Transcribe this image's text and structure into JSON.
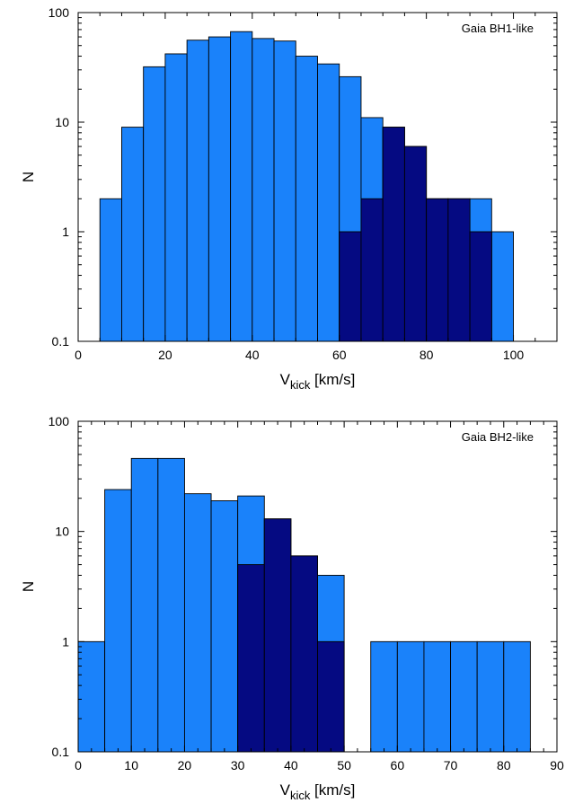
{
  "chart_data": [
    {
      "type": "bar",
      "label": "Gaia BH1-like",
      "xlabel_main": "V",
      "xlabel_sub": "kick",
      "xlabel_unit": "[km/s]",
      "ylabel": "N",
      "log_y": true,
      "xlim": [
        0,
        110
      ],
      "ylim": [
        0.1,
        100
      ],
      "xticks": [
        0,
        20,
        40,
        60,
        80,
        100
      ],
      "yticks": [
        0.1,
        1,
        10,
        100
      ],
      "ytick_labels": [
        "0.1",
        "1",
        "10",
        "100"
      ],
      "bin_width": 5,
      "colors": {
        "all": "#1a82fa",
        "subset": "#050a82"
      },
      "series": [
        {
          "role": "all",
          "bins": [
            {
              "x0": 5,
              "count": 2
            },
            {
              "x0": 10,
              "count": 9
            },
            {
              "x0": 15,
              "count": 32
            },
            {
              "x0": 20,
              "count": 42
            },
            {
              "x0": 25,
              "count": 56
            },
            {
              "x0": 30,
              "count": 60
            },
            {
              "x0": 35,
              "count": 67
            },
            {
              "x0": 40,
              "count": 58
            },
            {
              "x0": 45,
              "count": 55
            },
            {
              "x0": 50,
              "count": 40
            },
            {
              "x0": 55,
              "count": 34
            },
            {
              "x0": 60,
              "count": 26
            },
            {
              "x0": 65,
              "count": 11
            },
            {
              "x0": 70,
              "count": 9
            },
            {
              "x0": 75,
              "count": 6
            },
            {
              "x0": 80,
              "count": 2
            },
            {
              "x0": 85,
              "count": 2
            },
            {
              "x0": 90,
              "count": 2
            },
            {
              "x0": 95,
              "count": 1
            }
          ]
        },
        {
          "role": "subset",
          "bins": [
            {
              "x0": 60,
              "count": 1
            },
            {
              "x0": 65,
              "count": 2
            },
            {
              "x0": 70,
              "count": 9
            },
            {
              "x0": 75,
              "count": 6
            },
            {
              "x0": 80,
              "count": 2
            },
            {
              "x0": 85,
              "count": 2
            },
            {
              "x0": 90,
              "count": 1
            }
          ]
        }
      ]
    },
    {
      "type": "bar",
      "label": "Gaia BH2-like",
      "xlabel_main": "V",
      "xlabel_sub": "kick",
      "xlabel_unit": "[km/s]",
      "ylabel": "N",
      "log_y": true,
      "xlim": [
        0,
        90
      ],
      "ylim": [
        0.1,
        100
      ],
      "xticks": [
        0,
        10,
        20,
        30,
        40,
        50,
        60,
        70,
        80,
        90
      ],
      "yticks": [
        0.1,
        1,
        10,
        100
      ],
      "ytick_labels": [
        "0.1",
        "1",
        "10",
        "100"
      ],
      "bin_width": 5,
      "colors": {
        "all": "#1a82fa",
        "subset": "#050a82"
      },
      "series": [
        {
          "role": "all",
          "bins": [
            {
              "x0": 0,
              "count": 1
            },
            {
              "x0": 5,
              "count": 24
            },
            {
              "x0": 10,
              "count": 46
            },
            {
              "x0": 15,
              "count": 46
            },
            {
              "x0": 20,
              "count": 22
            },
            {
              "x0": 25,
              "count": 19
            },
            {
              "x0": 30,
              "count": 21
            },
            {
              "x0": 35,
              "count": 13
            },
            {
              "x0": 40,
              "count": 6
            },
            {
              "x0": 45,
              "count": 4
            },
            {
              "x0": 55,
              "count": 1
            },
            {
              "x0": 60,
              "count": 1
            },
            {
              "x0": 65,
              "count": 1
            },
            {
              "x0": 70,
              "count": 1
            },
            {
              "x0": 75,
              "count": 1
            },
            {
              "x0": 80,
              "count": 1
            }
          ]
        },
        {
          "role": "subset",
          "bins": [
            {
              "x0": 30,
              "count": 5
            },
            {
              "x0": 35,
              "count": 13
            },
            {
              "x0": 40,
              "count": 6
            },
            {
              "x0": 45,
              "count": 1
            }
          ]
        }
      ]
    }
  ]
}
